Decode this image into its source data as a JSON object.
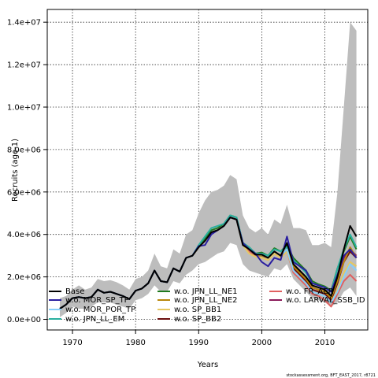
{
  "chart_data": {
    "type": "line",
    "xlabel": "Years",
    "ylabel": "Recruits (age-1)",
    "footnote": "stockassessment.org, BFT_EAST_2017, r8721",
    "xlim": [
      1966,
      2016.8
    ],
    "ylim": [
      -500000,
      14600000
    ],
    "xticks": [
      1970,
      1980,
      1990,
      2000,
      2010
    ],
    "yticks": [
      0,
      2000000,
      4000000,
      6000000,
      8000000,
      10000000,
      12000000,
      14000000
    ],
    "yticklabels": [
      "0.0e+00",
      "2.0e+06",
      "4.0e+06",
      "6.0e+06",
      "8.0e+06",
      "1.0e+07",
      "1.2e+07",
      "1.4e+07"
    ],
    "grid": true,
    "legend_position": "bottom-left",
    "x": [
      1968,
      1969,
      1970,
      1971,
      1972,
      1973,
      1974,
      1975,
      1976,
      1977,
      1978,
      1979,
      1980,
      1981,
      1982,
      1983,
      1984,
      1985,
      1986,
      1987,
      1988,
      1989,
      1990,
      1991,
      1992,
      1993,
      1994,
      1995,
      1996,
      1997,
      1998,
      1999,
      2000,
      2001,
      2002,
      2003,
      2004,
      2005,
      2006,
      2007,
      2008,
      2009,
      2010,
      2011,
      2012,
      2013,
      2014,
      2015
    ],
    "confidence_band": {
      "upper": [
        1000000,
        1100000,
        1400000,
        1600000,
        1400000,
        1500000,
        1900000,
        1800000,
        1850000,
        1750000,
        1600000,
        1400000,
        1900000,
        2000000,
        2300000,
        3100000,
        2500000,
        2400000,
        3300000,
        3100000,
        4000000,
        4200000,
        5000000,
        5600000,
        6000000,
        6100000,
        6300000,
        6800000,
        6600000,
        4900000,
        4300000,
        4100000,
        4300000,
        4000000,
        4700000,
        4500000,
        5400000,
        4300000,
        4300000,
        4200000,
        3500000,
        3500000,
        3600000,
        3400000,
        6000000,
        10000000,
        14000000,
        13600000
      ],
      "lower": [
        100000,
        300000,
        600000,
        500000,
        500000,
        600000,
        800000,
        800000,
        800000,
        700000,
        600000,
        500000,
        900000,
        1000000,
        1200000,
        1600000,
        1300000,
        1300000,
        1800000,
        1700000,
        2100000,
        2300000,
        2600000,
        2700000,
        2900000,
        3100000,
        3200000,
        3600000,
        3500000,
        2600000,
        2300000,
        2200000,
        2100000,
        2000000,
        2400000,
        2300000,
        2600000,
        1900000,
        1600000,
        1300000,
        1000000,
        900000,
        800000,
        600000,
        800000,
        1300000,
        1500000,
        1100000
      ]
    },
    "series": [
      {
        "name": "Base",
        "color": "#000000",
        "values": [
          500000,
          700000,
          1000000,
          1050000,
          1000000,
          1050000,
          1400000,
          1250000,
          1300000,
          1200000,
          1100000,
          950000,
          1350000,
          1450000,
          1700000,
          2300000,
          1800000,
          1750000,
          2400000,
          2250000,
          2900000,
          3000000,
          3400000,
          3700000,
          4100000,
          4200000,
          4400000,
          4800000,
          4700000,
          3500000,
          3300000,
          3050000,
          3050000,
          2900000,
          3200000,
          3000000,
          3600000,
          2600000,
          2300000,
          2000000,
          1600000,
          1500000,
          1400000,
          1100000,
          2000000,
          3300000,
          4400000,
          3900000
        ]
      },
      {
        "name": "w.o. MOR_SP_TP",
        "color": "#2a1fa0",
        "values": [
          500000,
          700000,
          1000000,
          1050000,
          1000000,
          1050000,
          1400000,
          1250000,
          1300000,
          1200000,
          1100000,
          950000,
          1350000,
          1450000,
          1700000,
          2300000,
          1800000,
          1750000,
          2400000,
          2250000,
          2900000,
          3000000,
          3450000,
          3500000,
          4000000,
          4200000,
          4400000,
          4800000,
          4700000,
          3600000,
          3300000,
          3100000,
          2700000,
          2500000,
          2900000,
          2800000,
          3900000,
          2700000,
          2500000,
          2300000,
          1700000,
          1600000,
          1500000,
          1300000,
          2100000,
          3000000,
          3300000,
          2900000
        ]
      },
      {
        "name": "w.o. MOR_POR_TP",
        "color": "#87cefa",
        "values": [
          500000,
          700000,
          1000000,
          1050000,
          1000000,
          1050000,
          1400000,
          1250000,
          1300000,
          1200000,
          1100000,
          950000,
          1350000,
          1450000,
          1700000,
          2300000,
          1800000,
          1750000,
          2400000,
          2250000,
          2900000,
          3000000,
          3400000,
          3700000,
          4100000,
          4200000,
          4400000,
          4800000,
          4700000,
          3500000,
          3300000,
          3050000,
          3050000,
          2900000,
          3200000,
          3000000,
          3300000,
          2300000,
          2000000,
          1700000,
          1300000,
          1200000,
          1100000,
          800000,
          1300000,
          2000000,
          2600000,
          2300000
        ]
      },
      {
        "name": "w.o. JPN_LL_EM",
        "color": "#2ab0a0",
        "values": [
          500000,
          700000,
          1000000,
          1050000,
          1000000,
          1050000,
          1400000,
          1250000,
          1300000,
          1200000,
          1100000,
          950000,
          1350000,
          1450000,
          1700000,
          2300000,
          1800000,
          1750000,
          2400000,
          2250000,
          2900000,
          3000000,
          3500000,
          3900000,
          4300000,
          4400000,
          4500000,
          4900000,
          4800000,
          3600000,
          3400000,
          3100000,
          3100000,
          3000000,
          3300000,
          3200000,
          3400000,
          2800000,
          2500000,
          2200000,
          1700000,
          1600000,
          1500000,
          1300000,
          2400000,
          3300000,
          4000000,
          3400000
        ]
      },
      {
        "name": "w.o. JPN_LL_NE1",
        "color": "#1f7a1f",
        "values": [
          500000,
          700000,
          1000000,
          1050000,
          1000000,
          1050000,
          1400000,
          1250000,
          1300000,
          1200000,
          1100000,
          950000,
          1350000,
          1450000,
          1700000,
          2300000,
          1800000,
          1750000,
          2400000,
          2250000,
          2900000,
          3000000,
          3450000,
          3800000,
          4200000,
          4300000,
          4500000,
          4900000,
          4800000,
          3600000,
          3400000,
          3100000,
          3150000,
          3000000,
          3350000,
          3200000,
          3500000,
          2900000,
          2600000,
          2300000,
          1800000,
          1650000,
          1550000,
          1350000,
          2400000,
          3200000,
          3900000,
          3300000
        ]
      },
      {
        "name": "w.o. JPN_LL_NE2",
        "color": "#b8860b",
        "values": [
          500000,
          700000,
          1000000,
          1050000,
          1000000,
          1050000,
          1400000,
          1250000,
          1300000,
          1200000,
          1100000,
          950000,
          1350000,
          1450000,
          1700000,
          2300000,
          1800000,
          1750000,
          2400000,
          2250000,
          2900000,
          3000000,
          3400000,
          3700000,
          4100000,
          4200000,
          4400000,
          4800000,
          4700000,
          3500000,
          3300000,
          3050000,
          3000000,
          2900000,
          3200000,
          3000000,
          3300000,
          2500000,
          2200000,
          1900000,
          1500000,
          1400000,
          1300000,
          1000000,
          1800000,
          2700000,
          3400000,
          2900000
        ]
      },
      {
        "name": "w.o. SP_BB1",
        "color": "#e6c860",
        "values": [
          500000,
          700000,
          1000000,
          1050000,
          1000000,
          1050000,
          1400000,
          1250000,
          1300000,
          1200000,
          1100000,
          950000,
          1350000,
          1450000,
          1700000,
          2300000,
          1800000,
          1750000,
          2400000,
          2250000,
          2900000,
          3000000,
          3400000,
          3700000,
          4100000,
          4200000,
          4400000,
          4800000,
          4700000,
          3500000,
          3100000,
          2950000,
          2900000,
          2800000,
          3100000,
          2900000,
          3200000,
          2300000,
          2000000,
          1700000,
          1300000,
          1200000,
          1100000,
          800000,
          1400000,
          2200000,
          2700000,
          2500000
        ]
      },
      {
        "name": "w.o. SP_BB2",
        "color": "#6b0f0f",
        "values": [
          500000,
          700000,
          1000000,
          1050000,
          1000000,
          1050000,
          1400000,
          1250000,
          1300000,
          1200000,
          1100000,
          950000,
          1350000,
          1450000,
          1700000,
          2300000,
          1800000,
          1750000,
          2400000,
          2250000,
          2900000,
          3000000,
          3400000,
          3700000,
          4100000,
          4200000,
          4400000,
          4800000,
          4700000,
          3500000,
          3300000,
          3050000,
          3000000,
          2900000,
          3200000,
          3000000,
          3300000,
          2400000,
          2100000,
          1800000,
          1400000,
          1300000,
          1200000,
          900000,
          1700000,
          2700000,
          3200000,
          2900000
        ]
      },
      {
        "name": "w.o. FR_AER",
        "color": "#e06060",
        "values": [
          500000,
          700000,
          1000000,
          1050000,
          1000000,
          1050000,
          1400000,
          1250000,
          1300000,
          1200000,
          1100000,
          950000,
          1350000,
          1450000,
          1700000,
          2300000,
          1800000,
          1750000,
          2400000,
          2250000,
          2900000,
          3000000,
          3400000,
          3700000,
          4100000,
          4200000,
          4400000,
          4800000,
          4700000,
          3500000,
          3200000,
          3000000,
          2900000,
          2800000,
          3100000,
          2900000,
          3200000,
          2200000,
          1900000,
          1600000,
          1200000,
          1100000,
          900000,
          600000,
          1200000,
          1800000,
          2100000,
          1800000
        ]
      },
      {
        "name": "w.o. LARVAL_SSB_ID",
        "color": "#8b1a5a",
        "values": [
          500000,
          700000,
          1000000,
          1050000,
          1000000,
          1050000,
          1400000,
          1250000,
          1300000,
          1200000,
          1100000,
          950000,
          1350000,
          1450000,
          1700000,
          2300000,
          1800000,
          1750000,
          2400000,
          2250000,
          2900000,
          3000000,
          3400000,
          3700000,
          4100000,
          4200000,
          4400000,
          4800000,
          4700000,
          3500000,
          3300000,
          3050000,
          3000000,
          2900000,
          3200000,
          3000000,
          3300000,
          2500000,
          2200000,
          1900000,
          1500000,
          1400000,
          1300000,
          1000000,
          1900000,
          2900000,
          3300000,
          3000000
        ]
      }
    ]
  }
}
